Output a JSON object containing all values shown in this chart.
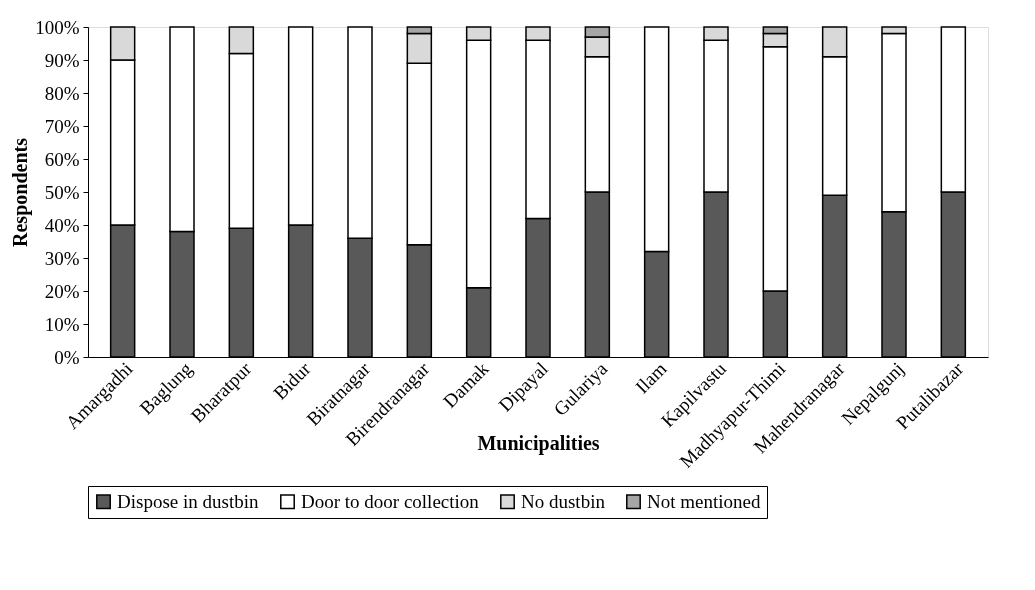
{
  "chart_data": {
    "type": "bar",
    "stacked": true,
    "xlabel": "Municipalities",
    "ylabel": "Respondents",
    "categories": [
      "Amargadhi",
      "Baglung",
      "Bharatpur",
      "Bidur",
      "Biratnagar",
      "Birendranagar",
      "Damak",
      "Dipayal",
      "Gulariya",
      "Ilam",
      "Kapilvastu",
      "Madhyapur-Thimi",
      "Mahendranagar",
      "Nepalgunj",
      "Putalibazar"
    ],
    "series": [
      {
        "name": "Dispose in dustbin",
        "color": "#595959",
        "values": [
          40,
          38,
          39,
          40,
          36,
          34,
          21,
          42,
          50,
          32,
          50,
          20,
          49,
          44,
          50
        ]
      },
      {
        "name": "Door to door collection",
        "color": "#ffffff",
        "values": [
          50,
          62,
          53,
          60,
          64,
          55,
          75,
          54,
          41,
          68,
          46,
          74,
          42,
          54,
          50
        ]
      },
      {
        "name": "No dustbin",
        "color": "#d9d9d9",
        "values": [
          10,
          null,
          8,
          null,
          null,
          9,
          4,
          4,
          6,
          null,
          4,
          4,
          9,
          2,
          null
        ]
      },
      {
        "name": "Not mentioned",
        "color": "#a6a6a6",
        "values": [
          null,
          null,
          null,
          null,
          null,
          2,
          null,
          null,
          3,
          null,
          null,
          2,
          null,
          null,
          null
        ]
      }
    ],
    "ylim": [
      0,
      100
    ],
    "yticks": [
      {
        "value": 0,
        "label": "0%"
      },
      {
        "value": 10,
        "label": "10%"
      },
      {
        "value": 20,
        "label": "20%"
      },
      {
        "value": 30,
        "label": "30%"
      },
      {
        "value": 40,
        "label": "40%"
      },
      {
        "value": 50,
        "label": "50%"
      },
      {
        "value": 60,
        "label": "60%"
      },
      {
        "value": 70,
        "label": "70%"
      },
      {
        "value": 80,
        "label": "80%"
      },
      {
        "value": 90,
        "label": "90%"
      },
      {
        "value": 100,
        "label": "100%"
      }
    ],
    "grid": false,
    "legend": "bottom"
  }
}
